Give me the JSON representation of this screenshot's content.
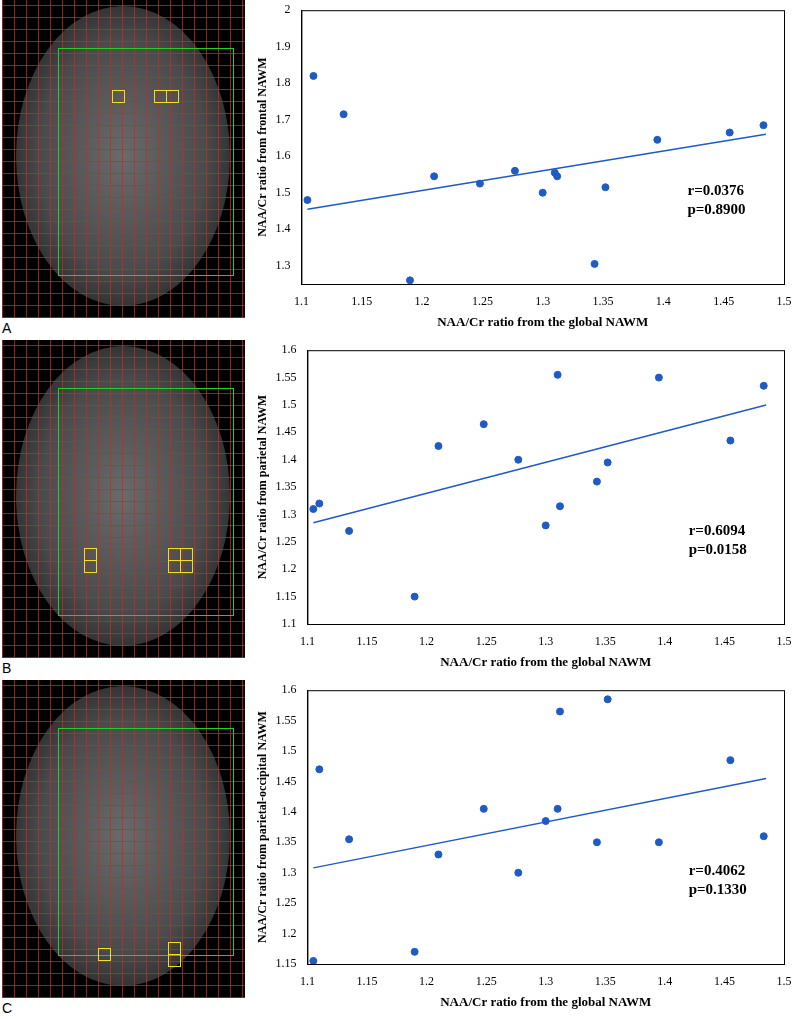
{
  "chart_data": [
    {
      "panel": "A",
      "type": "scatter",
      "x_label": "NAA/Cr ratio from the global NAWM",
      "y_label": "NAA/Cr ratio from frontal NAWM",
      "x": [
        1.105,
        1.11,
        1.135,
        1.19,
        1.21,
        1.248,
        1.277,
        1.3,
        1.31,
        1.312,
        1.343,
        1.352,
        1.395,
        1.455,
        1.483
      ],
      "values": [
        1.48,
        1.82,
        1.715,
        1.26,
        1.545,
        1.525,
        1.56,
        1.5,
        1.555,
        1.545,
        1.305,
        1.515,
        1.645,
        1.665,
        1.685
      ],
      "fit": {
        "x": [
          1.105,
          1.485
        ],
        "values": [
          1.455,
          1.66
        ]
      },
      "annotations": [
        "r=0.0376",
        "p=0.8900"
      ],
      "color": "#1f5bc4",
      "marker": "circle",
      "line_style": "solid",
      "xlim": [
        1.1,
        1.5
      ],
      "xticks": [
        1.1,
        1.15,
        1.2,
        1.25,
        1.3,
        1.35,
        1.4,
        1.45,
        1.5
      ],
      "ylim": [
        1.25,
        2
      ],
      "yticks": [
        1.3,
        1.4,
        1.5,
        1.6,
        1.7,
        1.8,
        1.9,
        2
      ],
      "grid": false
    },
    {
      "panel": "B",
      "type": "scatter",
      "x_label": "NAA/Cr ratio from the global NAWM",
      "y_label": "NAA/Cr ratio from parietal NAWM",
      "x": [
        1.105,
        1.11,
        1.135,
        1.19,
        1.21,
        1.248,
        1.277,
        1.3,
        1.31,
        1.312,
        1.343,
        1.352,
        1.395,
        1.455,
        1.483
      ],
      "values": [
        1.31,
        1.32,
        1.27,
        1.15,
        1.425,
        1.465,
        1.4,
        1.28,
        1.555,
        1.315,
        1.36,
        1.395,
        1.55,
        1.435,
        1.535
      ],
      "fit": {
        "x": [
          1.105,
          1.485
        ],
        "values": [
          1.285,
          1.5
        ]
      },
      "annotations": [
        "r=0.6094",
        "p=0.0158"
      ],
      "color": "#1f5bc4",
      "marker": "circle",
      "line_style": "solid",
      "xlim": [
        1.1,
        1.5
      ],
      "xticks": [
        1.1,
        1.15,
        1.2,
        1.25,
        1.3,
        1.35,
        1.4,
        1.45,
        1.5
      ],
      "ylim": [
        1.1,
        1.6
      ],
      "yticks": [
        1.1,
        1.15,
        1.2,
        1.25,
        1.3,
        1.35,
        1.4,
        1.45,
        1.5,
        1.55,
        1.6
      ],
      "grid": false
    },
    {
      "panel": "C",
      "type": "scatter",
      "x_label": "NAA/Cr ratio from the global NAWM",
      "y_label": "NAA/Cr ratio from parietal-occipital NAWM",
      "x": [
        1.105,
        1.11,
        1.135,
        1.19,
        1.21,
        1.248,
        1.277,
        1.3,
        1.31,
        1.312,
        1.343,
        1.352,
        1.395,
        1.455,
        1.483
      ],
      "values": [
        1.155,
        1.47,
        1.355,
        1.17,
        1.33,
        1.405,
        1.3,
        1.385,
        1.405,
        1.565,
        1.35,
        1.585,
        1.35,
        1.485,
        1.36
      ],
      "fit": {
        "x": [
          1.105,
          1.485
        ],
        "values": [
          1.308,
          1.455
        ]
      },
      "annotations": [
        "r=0.4062",
        "p=0.1330"
      ],
      "color": "#1f5bc4",
      "marker": "circle",
      "line_style": "solid",
      "xlim": [
        1.1,
        1.5
      ],
      "xticks": [
        1.1,
        1.15,
        1.2,
        1.25,
        1.3,
        1.35,
        1.4,
        1.45,
        1.5
      ],
      "ylim": [
        1.15,
        1.6
      ],
      "yticks": [
        1.15,
        1.2,
        1.25,
        1.3,
        1.35,
        1.4,
        1.45,
        1.5,
        1.55,
        1.6
      ],
      "grid": false
    }
  ]
}
